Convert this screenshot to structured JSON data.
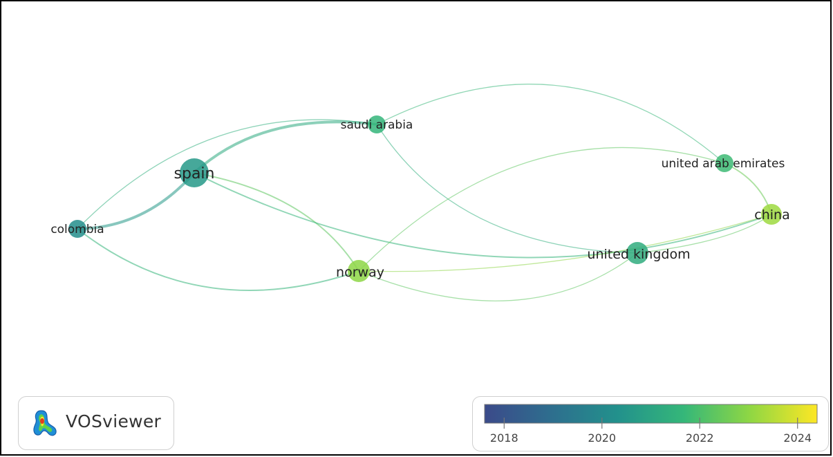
{
  "nodes": [
    {
      "id": "spain",
      "label": "spain",
      "weight": 3,
      "year": 2020.6
    },
    {
      "id": "saudi_arabia",
      "label": "saudi arabia",
      "weight": 1.4,
      "year": 2021.6
    },
    {
      "id": "colombia",
      "label": "colombia",
      "weight": 1.4,
      "year": 2020.2
    },
    {
      "id": "norway",
      "label": "norway",
      "weight": 2,
      "year": 2023.0
    },
    {
      "id": "united_arab_emirates",
      "label": "united arab emirates",
      "weight": 1.4,
      "year": 2021.8
    },
    {
      "id": "china",
      "label": "china",
      "weight": 1.8,
      "year": 2023.2
    },
    {
      "id": "united_kingdom",
      "label": "united kingdom",
      "weight": 2,
      "year": 2021.3
    }
  ],
  "links": [
    {
      "source": "spain",
      "target": "saudi_arabia",
      "strength": 3,
      "year": 2021.2
    },
    {
      "source": "spain",
      "target": "colombia",
      "strength": 3,
      "year": 2020.6
    },
    {
      "source": "spain",
      "target": "norway",
      "strength": 1.5,
      "year": 2022.3
    },
    {
      "source": "spain",
      "target": "china",
      "strength": 1.5,
      "year": 2021.6
    },
    {
      "source": "colombia",
      "target": "saudi_arabia",
      "strength": 1,
      "year": 2021.4
    },
    {
      "source": "colombia",
      "target": "norway",
      "strength": 1.5,
      "year": 2021.6
    },
    {
      "source": "saudi_arabia",
      "target": "united_arab_emirates",
      "strength": 1,
      "year": 2021.7
    },
    {
      "source": "saudi_arabia",
      "target": "united_kingdom",
      "strength": 1,
      "year": 2021.4
    },
    {
      "source": "norway",
      "target": "united_arab_emirates",
      "strength": 1,
      "year": 2022.3
    },
    {
      "source": "norway",
      "target": "united_kingdom",
      "strength": 1,
      "year": 2022.3
    },
    {
      "source": "united_arab_emirates",
      "target": "china",
      "strength": 1.5,
      "year": 2022.5
    },
    {
      "source": "china",
      "target": "norway",
      "strength": 1,
      "year": 2023.0
    },
    {
      "source": "united_kingdom",
      "target": "china",
      "strength": 1,
      "year": 2022.3
    }
  ],
  "logo": {
    "text": "VOSviewer"
  },
  "legend": {
    "range": [
      2017.6,
      2024.4
    ],
    "ticks": [
      {
        "value": 2018,
        "label": "2018"
      },
      {
        "value": 2020,
        "label": "2020"
      },
      {
        "value": 2022,
        "label": "2022"
      },
      {
        "value": 2024,
        "label": "2024"
      }
    ],
    "colormap": [
      "#3b4a8a",
      "#2e6e8e",
      "#22918c",
      "#35b779",
      "#90d743",
      "#fde725"
    ]
  }
}
